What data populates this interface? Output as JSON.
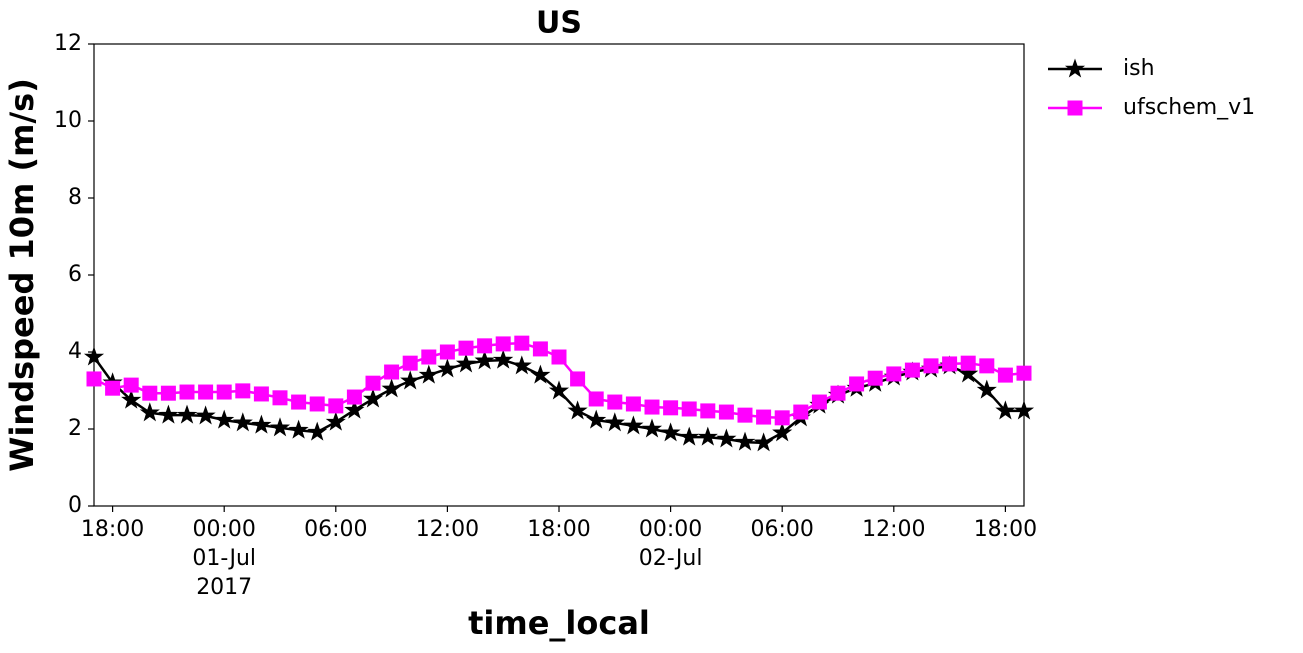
{
  "chart_data": {
    "type": "line",
    "title": "US",
    "xlabel": "time_local",
    "ylabel": "Windspeed 10m (m/s)",
    "x": [
      "2017-06-30 17:00",
      "2017-06-30 18:00",
      "2017-06-30 19:00",
      "2017-06-30 20:00",
      "2017-06-30 21:00",
      "2017-06-30 22:00",
      "2017-06-30 23:00",
      "2017-07-01 00:00",
      "2017-07-01 01:00",
      "2017-07-01 02:00",
      "2017-07-01 03:00",
      "2017-07-01 04:00",
      "2017-07-01 05:00",
      "2017-07-01 06:00",
      "2017-07-01 07:00",
      "2017-07-01 08:00",
      "2017-07-01 09:00",
      "2017-07-01 10:00",
      "2017-07-01 11:00",
      "2017-07-01 12:00",
      "2017-07-01 13:00",
      "2017-07-01 14:00",
      "2017-07-01 15:00",
      "2017-07-01 16:00",
      "2017-07-01 17:00",
      "2017-07-01 18:00",
      "2017-07-01 19:00",
      "2017-07-01 20:00",
      "2017-07-01 21:00",
      "2017-07-01 22:00",
      "2017-07-01 23:00",
      "2017-07-02 00:00",
      "2017-07-02 01:00",
      "2017-07-02 02:00",
      "2017-07-02 03:00",
      "2017-07-02 04:00",
      "2017-07-02 05:00",
      "2017-07-02 06:00",
      "2017-07-02 07:00",
      "2017-07-02 08:00",
      "2017-07-02 09:00",
      "2017-07-02 10:00",
      "2017-07-02 11:00",
      "2017-07-02 12:00",
      "2017-07-02 13:00",
      "2017-07-02 14:00",
      "2017-07-02 15:00",
      "2017-07-02 16:00",
      "2017-07-02 17:00",
      "2017-07-02 18:00",
      "2017-07-02 19:00"
    ],
    "series": [
      {
        "name": "ish",
        "color": "#000000",
        "marker": "star",
        "values": [
          3.87,
          3.2,
          2.75,
          2.42,
          2.36,
          2.36,
          2.34,
          2.23,
          2.16,
          2.1,
          2.03,
          1.97,
          1.92,
          2.18,
          2.49,
          2.78,
          3.04,
          3.25,
          3.4,
          3.56,
          3.69,
          3.77,
          3.79,
          3.64,
          3.4,
          2.99,
          2.47,
          2.23,
          2.16,
          2.08,
          2.0,
          1.9,
          1.79,
          1.79,
          1.74,
          1.66,
          1.64,
          1.9,
          2.29,
          2.62,
          2.88,
          3.06,
          3.19,
          3.35,
          3.48,
          3.56,
          3.64,
          3.43,
          3.01,
          2.47,
          2.47
        ]
      },
      {
        "name": "ufschem_v1",
        "color": "#ff00ff",
        "marker": "square",
        "values": [
          3.3,
          3.06,
          3.14,
          2.93,
          2.93,
          2.96,
          2.96,
          2.96,
          2.99,
          2.91,
          2.81,
          2.7,
          2.65,
          2.6,
          2.83,
          3.19,
          3.48,
          3.71,
          3.87,
          4.0,
          4.1,
          4.16,
          4.21,
          4.23,
          4.08,
          3.87,
          3.3,
          2.78,
          2.7,
          2.65,
          2.57,
          2.55,
          2.52,
          2.47,
          2.44,
          2.36,
          2.31,
          2.29,
          2.44,
          2.7,
          2.93,
          3.17,
          3.32,
          3.43,
          3.53,
          3.64,
          3.69,
          3.71,
          3.64,
          3.4,
          3.45
        ]
      }
    ],
    "xlim": [
      "2017-06-30 17:00",
      "2017-07-02 19:00"
    ],
    "xticks": [
      {
        "value": "2017-06-30 18:00",
        "label": [
          "18:00"
        ]
      },
      {
        "value": "2017-07-01 00:00",
        "label": [
          "00:00",
          "01-Jul",
          "2017"
        ]
      },
      {
        "value": "2017-07-01 06:00",
        "label": [
          "06:00"
        ]
      },
      {
        "value": "2017-07-01 12:00",
        "label": [
          "12:00"
        ]
      },
      {
        "value": "2017-07-01 18:00",
        "label": [
          "18:00"
        ]
      },
      {
        "value": "2017-07-02 00:00",
        "label": [
          "00:00",
          "02-Jul"
        ]
      },
      {
        "value": "2017-07-02 06:00",
        "label": [
          "06:00"
        ]
      },
      {
        "value": "2017-07-02 12:00",
        "label": [
          "12:00"
        ]
      },
      {
        "value": "2017-07-02 18:00",
        "label": [
          "18:00"
        ]
      }
    ],
    "ylim": [
      0,
      12
    ],
    "yticks": [
      0,
      2,
      4,
      6,
      8,
      10,
      12
    ],
    "grid": false,
    "legend": "outside-upper-right"
  }
}
